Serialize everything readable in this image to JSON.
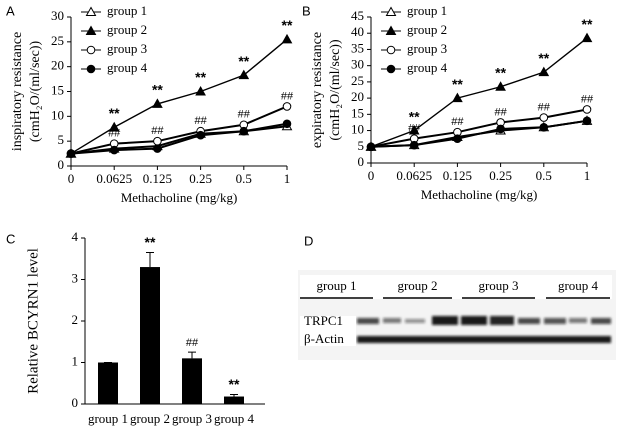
{
  "chart_data": [
    {
      "type": "line",
      "panel": "A",
      "ylabel": [
        "inspiratory resistance",
        "(cmH₂O/(ml/sec))"
      ],
      "xlabel": "Methacholine (mg/kg)",
      "categories": [
        "0",
        "0.0625",
        "0.125",
        "0.25",
        "0.5",
        "1"
      ],
      "ylim": [
        0,
        30
      ],
      "yticks": [
        0,
        5,
        10,
        15,
        20,
        25,
        30
      ],
      "legend": "upper-left",
      "series": [
        {
          "name": "group 1",
          "marker": "triangle-open",
          "color": "#000000",
          "values": [
            2.5,
            3.5,
            4,
            6.5,
            7,
            8
          ],
          "annotations": []
        },
        {
          "name": "group 2",
          "marker": "triangle-filled",
          "color": "#000000",
          "values": [
            2.5,
            7.8,
            12.5,
            15,
            18.3,
            25.5
          ],
          "annotations": [
            null,
            "**",
            "**",
            "**",
            "**",
            "**"
          ]
        },
        {
          "name": "group 3",
          "marker": "circle-open",
          "color": "#000000",
          "values": [
            2.5,
            4.5,
            5,
            7,
            8.3,
            12
          ],
          "annotations": [
            null,
            "##",
            "##",
            "##",
            "##",
            "##"
          ]
        },
        {
          "name": "group 4",
          "marker": "circle-filled",
          "color": "#000000",
          "values": [
            2.5,
            3.2,
            3.5,
            6.2,
            7,
            8.5
          ],
          "annotations": []
        }
      ]
    },
    {
      "type": "line",
      "panel": "B",
      "ylabel": [
        "expiratory resistance",
        "(cmH₂O/(ml/sec))"
      ],
      "xlabel": "Methacholine (mg/kg)",
      "categories": [
        "0",
        "0.0625",
        "0.125",
        "0.25",
        "0.5",
        "1"
      ],
      "ylim": [
        0,
        45
      ],
      "yticks": [
        0,
        5,
        10,
        15,
        20,
        25,
        30,
        35,
        40,
        45
      ],
      "legend": "upper-left",
      "series": [
        {
          "name": "group 1",
          "marker": "triangle-open",
          "color": "#000000",
          "values": [
            5,
            5.5,
            8,
            10,
            11,
            13
          ],
          "annotations": []
        },
        {
          "name": "group 2",
          "marker": "triangle-filled",
          "color": "#000000",
          "values": [
            5,
            10,
            20,
            23.5,
            28,
            38.5
          ],
          "annotations": [
            null,
            "**",
            "**",
            "**",
            "**",
            "**"
          ]
        },
        {
          "name": "group 3",
          "marker": "circle-open",
          "color": "#000000",
          "values": [
            5,
            7.5,
            9.5,
            12.5,
            14,
            16.5
          ],
          "annotations": [
            null,
            "##",
            "##",
            "##",
            "##",
            "##"
          ]
        },
        {
          "name": "group 4",
          "marker": "circle-filled",
          "color": "#000000",
          "values": [
            5,
            5.5,
            7.5,
            10.5,
            11,
            13
          ],
          "annotations": []
        }
      ]
    },
    {
      "type": "bar",
      "panel": "C",
      "ylabel": "Relative BCYRN1 level",
      "categories": [
        "group 1",
        "group 2",
        "group 3",
        "group 4"
      ],
      "values": [
        1,
        3.3,
        1.1,
        0.18
      ],
      "errors": [
        0,
        0.35,
        0.15,
        0.05
      ],
      "annotations": [
        null,
        "**",
        "##",
        "**"
      ],
      "ylim": [
        0,
        4
      ],
      "yticks": [
        0,
        1,
        2,
        3,
        4
      ],
      "color": "#000000"
    }
  ],
  "blot": {
    "panel": "D",
    "groups": [
      "group 1",
      "group 2",
      "group 3",
      "group 4"
    ],
    "rows": [
      "TRPC1",
      "β-Actin"
    ]
  }
}
